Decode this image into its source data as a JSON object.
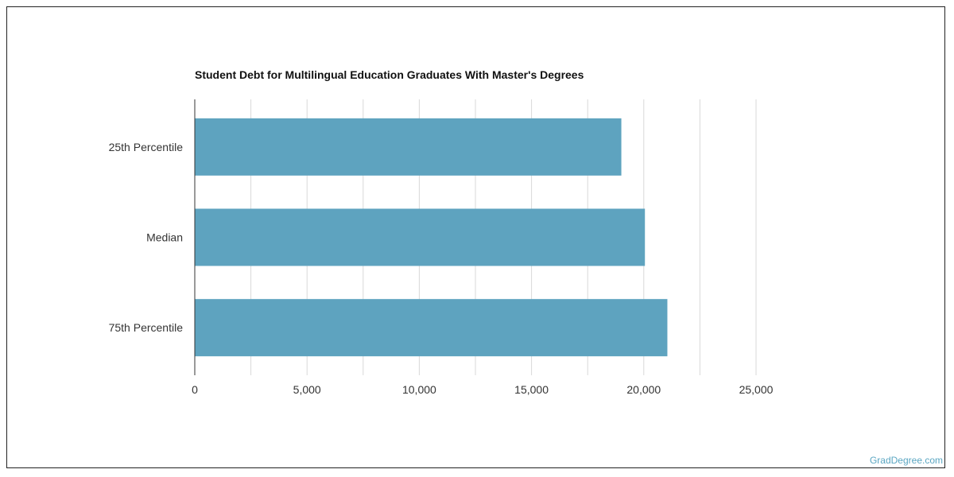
{
  "chart_data": {
    "type": "bar",
    "orientation": "horizontal",
    "title": "Student Debt for Multilingual Education Graduates With Master's Degrees",
    "categories": [
      "25th Percentile",
      "Median",
      "75th Percentile"
    ],
    "values": [
      19000,
      20050,
      21050
    ],
    "xlim": [
      0,
      25000
    ],
    "xticks": [
      0,
      5000,
      10000,
      15000,
      20000,
      25000
    ],
    "xtick_labels": [
      "0",
      "5,000",
      "10,000",
      "15,000",
      "20,000",
      "25,000"
    ],
    "xlabel": "",
    "ylabel": "",
    "grid": true,
    "legend": "none",
    "bar_color": "#5ea3bf"
  },
  "credit": "GradDegree.com"
}
